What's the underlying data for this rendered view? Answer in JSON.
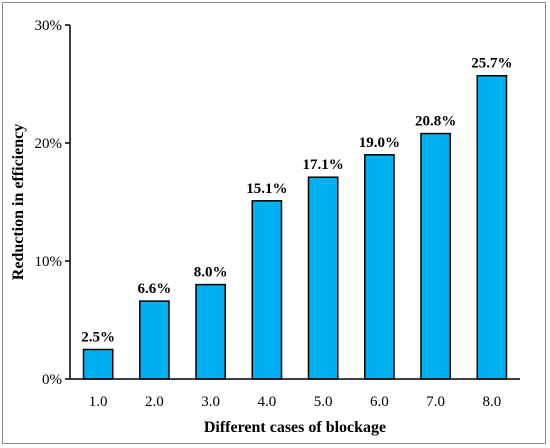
{
  "chart_data": {
    "type": "bar",
    "categories": [
      "1.0",
      "2.0",
      "3.0",
      "4.0",
      "5.0",
      "6.0",
      "7.0",
      "8.0"
    ],
    "values": [
      2.5,
      6.6,
      8.0,
      15.1,
      17.1,
      19.0,
      20.8,
      25.7
    ],
    "data_labels": [
      "2.5%",
      "6.6%",
      "8.0%",
      "15.1%",
      "17.1%",
      "19.0%",
      "20.8%",
      "25.7%"
    ],
    "xlabel": "Different cases of blockage",
    "ylabel": "Reduction in efficiency",
    "ylim": [
      0,
      30
    ],
    "yticks": [
      0,
      10,
      20,
      30
    ],
    "ytick_labels": [
      "0%",
      "10%",
      "20%",
      "30%"
    ],
    "grid": false,
    "legend": "none",
    "bar_color": "#00b0f0",
    "bar_edge_color": "#000000"
  }
}
